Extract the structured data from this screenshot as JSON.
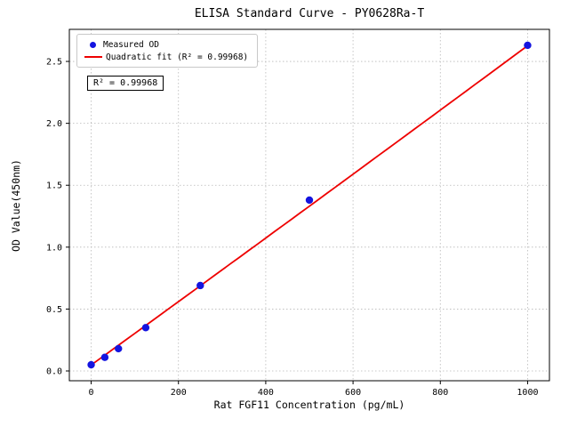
{
  "chart_data": {
    "type": "scatter",
    "title": "ELISA Standard Curve - PY0628Ra-T",
    "xlabel": "Rat FGF11 Concentration (pg/mL)",
    "ylabel": "OD Value(450nm)",
    "xlim": [
      -50,
      1050
    ],
    "ylim": [
      -0.079,
      2.759
    ],
    "xticks": [
      0,
      200,
      400,
      600,
      800,
      1000
    ],
    "yticks": [
      0.0,
      0.5,
      1.0,
      1.5,
      2.0,
      2.5
    ],
    "grid": "dotted",
    "legend_position": "upper-left",
    "legend": [
      {
        "label": "Measured OD",
        "marker": "point",
        "color": "#1414e0"
      },
      {
        "label": "Quadratic fit (R² = 0.99968)",
        "marker": "line",
        "color": "#ee0000"
      }
    ],
    "annotation": "R² = 0.99968",
    "points": {
      "name": "Measured OD",
      "color": "#1414e0",
      "x": [
        0,
        31.25,
        62.5,
        125,
        250,
        500,
        1000
      ],
      "y": [
        0.05,
        0.11,
        0.18,
        0.35,
        0.69,
        1.38,
        2.63
      ]
    },
    "fit": {
      "name": "Quadratic fit",
      "color": "#ee0000",
      "coeffs": [
        2.6e-08,
        0.002553,
        0.048
      ],
      "x_range": [
        0,
        1000
      ],
      "r_squared": 0.99968
    }
  }
}
